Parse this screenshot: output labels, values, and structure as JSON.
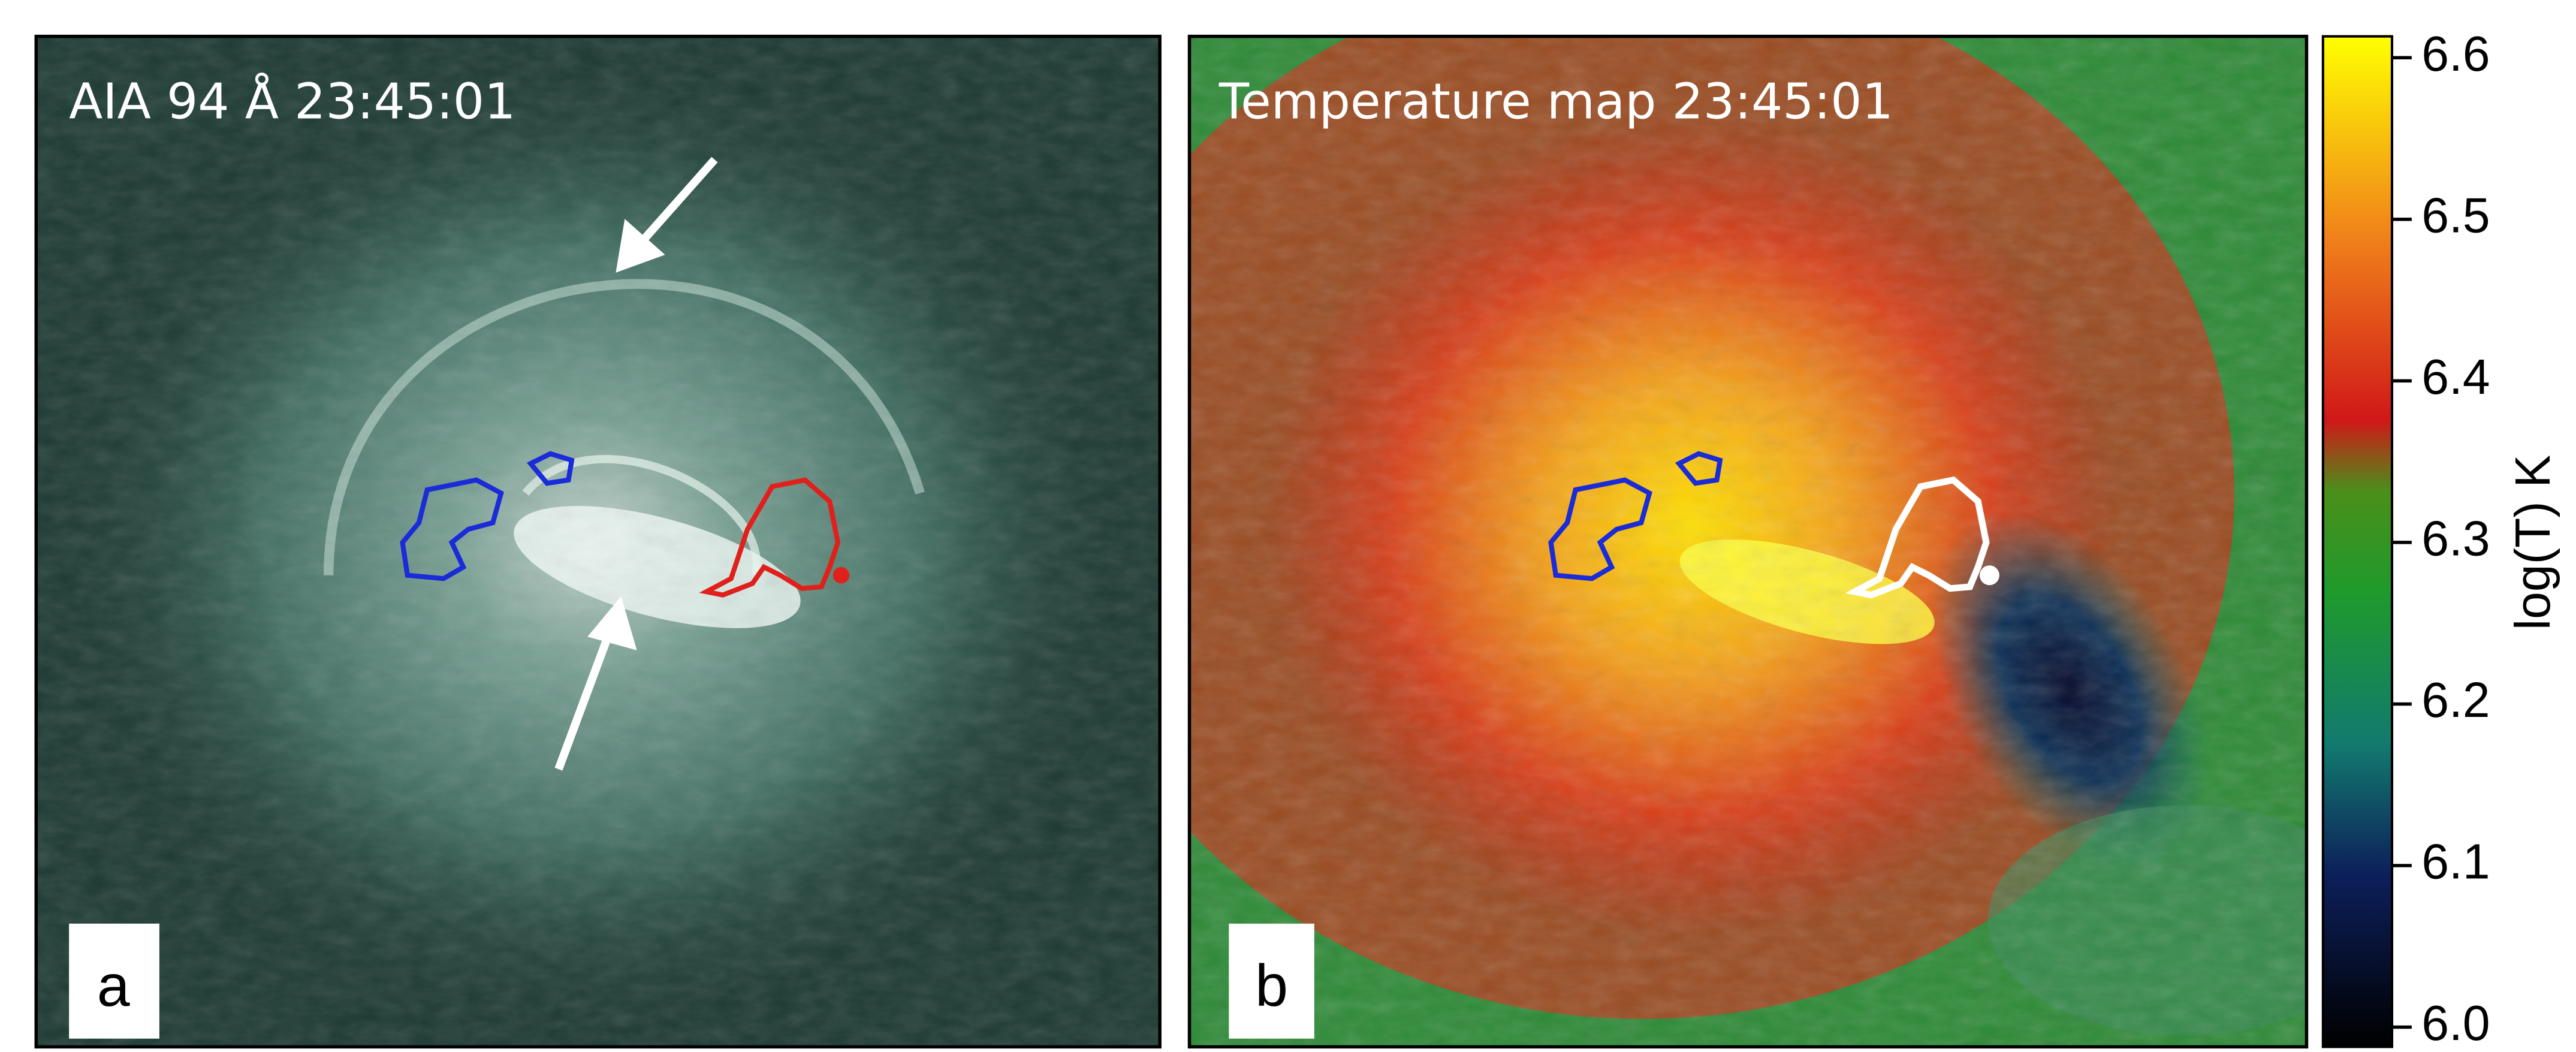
{
  "panels": [
    {
      "title": "AIA 94 Å 23:45:01",
      "label": "a"
    },
    {
      "title": "Temperature map 23:45:01",
      "label": "b"
    }
  ],
  "colorbar": {
    "label": "log(T) K",
    "lim": [
      6.0,
      6.6
    ],
    "ticks": [
      {
        "value": 6.0,
        "label": "6.0"
      },
      6.1,
      6.2,
      6.3,
      6.4,
      6.5,
      6.6
    ]
  }
}
